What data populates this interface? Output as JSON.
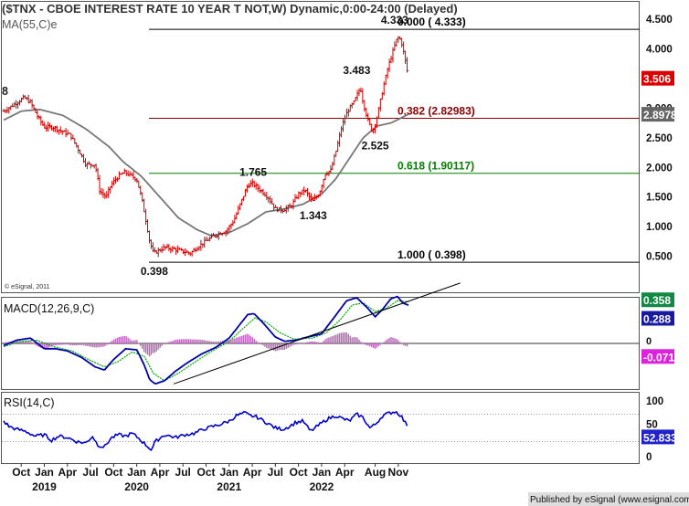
{
  "header": {
    "main_title": "($TNX - CBOE INTEREST RATE 10 YEAR T NOT,W) Dynamic,0:00-24:00 (Delayed)",
    "ma_label": "MA(55,C)e",
    "watermark": "© eSignal, 2011",
    "macd_title": "MACD(12,26,9,C)",
    "rsi_title": "RSI(14,C)",
    "footer": "Published by eSignal (www.esignal.com)",
    "left_edge_label": "8"
  },
  "colors": {
    "price_bars": "#cc0000",
    "ma_line": "#777777",
    "fib_000": "#000000",
    "fib_382": "#8b0000",
    "fib_618": "#008000",
    "fib_100": "#000000",
    "macd_line": "#0000aa",
    "signal_line": "#00aa00",
    "histogram": "#bb66bb",
    "rsi_line": "#0000cc",
    "current_price_box": "#dd0000",
    "ma_value_box": "#666666",
    "macd_value_box": "#118844",
    "hist_value_box": "#dd22dd",
    "rsi_value_box": "#2222cc"
  },
  "chart_data": [
    {
      "type": "candlestick",
      "name": "price",
      "ylim": [
        0.2,
        4.55
      ],
      "y_ticks": [
        0.5,
        1.0,
        1.5,
        2.0,
        2.5,
        3.0,
        3.5,
        4.0,
        4.5
      ],
      "y_tick_labels": [
        "0.500",
        "1.000",
        "1.500",
        "2.000",
        "2.500",
        "3.000",
        "3.500",
        "4.000",
        "4.500"
      ],
      "x_ticks": [
        {
          "t": 2018.75,
          "label": "Oct"
        },
        {
          "t": 2019.0,
          "label": "Jan"
        },
        {
          "t": 2019.25,
          "label": "Apr"
        },
        {
          "t": 2019.5,
          "label": "Jul"
        },
        {
          "t": 2019.75,
          "label": "Oct"
        },
        {
          "t": 2020.0,
          "label": "Jan"
        },
        {
          "t": 2020.25,
          "label": "Apr"
        },
        {
          "t": 2020.5,
          "label": "Jul"
        },
        {
          "t": 2020.75,
          "label": "Oct"
        },
        {
          "t": 2021.0,
          "label": "Jan"
        },
        {
          "t": 2021.25,
          "label": "Apr"
        },
        {
          "t": 2021.5,
          "label": "Jul"
        },
        {
          "t": 2021.75,
          "label": "Oct"
        },
        {
          "t": 2022.0,
          "label": "Jan"
        },
        {
          "t": 2022.25,
          "label": "Apr"
        },
        {
          "t": 2022.58,
          "label": "Aug"
        },
        {
          "t": 2022.83,
          "label": "Nov"
        }
      ],
      "year_labels": [
        {
          "t": 2019.0,
          "label": "2019"
        },
        {
          "t": 2020.0,
          "label": "2020"
        },
        {
          "t": 2021.0,
          "label": "2021"
        },
        {
          "t": 2022.0,
          "label": "2022"
        }
      ],
      "close_anchors": [
        [
          2018.56,
          2.95
        ],
        [
          2018.66,
          3.05
        ],
        [
          2018.78,
          3.18
        ],
        [
          2018.85,
          3.1
        ],
        [
          2018.93,
          2.85
        ],
        [
          2019.0,
          2.68
        ],
        [
          2019.1,
          2.68
        ],
        [
          2019.2,
          2.6
        ],
        [
          2019.28,
          2.55
        ],
        [
          2019.37,
          2.3
        ],
        [
          2019.45,
          2.05
        ],
        [
          2019.55,
          2.05
        ],
        [
          2019.6,
          1.6
        ],
        [
          2019.67,
          1.5
        ],
        [
          2019.72,
          1.7
        ],
        [
          2019.8,
          1.85
        ],
        [
          2019.87,
          1.92
        ],
        [
          2019.95,
          1.85
        ],
        [
          2020.0,
          1.8
        ],
        [
          2020.05,
          1.5
        ],
        [
          2020.1,
          1.1
        ],
        [
          2020.14,
          0.75
        ],
        [
          2020.18,
          0.55
        ],
        [
          2020.3,
          0.65
        ],
        [
          2020.4,
          0.62
        ],
        [
          2020.5,
          0.58
        ],
        [
          2020.58,
          0.55
        ],
        [
          2020.67,
          0.67
        ],
        [
          2020.77,
          0.78
        ],
        [
          2020.88,
          0.88
        ],
        [
          2020.97,
          0.93
        ],
        [
          2021.05,
          1.1
        ],
        [
          2021.12,
          1.38
        ],
        [
          2021.2,
          1.7
        ],
        [
          2021.25,
          1.73
        ],
        [
          2021.35,
          1.6
        ],
        [
          2021.42,
          1.5
        ],
        [
          2021.5,
          1.3
        ],
        [
          2021.58,
          1.28
        ],
        [
          2021.67,
          1.35
        ],
        [
          2021.75,
          1.55
        ],
        [
          2021.82,
          1.62
        ],
        [
          2021.9,
          1.42
        ],
        [
          2021.97,
          1.55
        ],
        [
          2022.04,
          1.9
        ],
        [
          2022.1,
          1.95
        ],
        [
          2022.16,
          2.3
        ],
        [
          2022.22,
          2.7
        ],
        [
          2022.28,
          2.95
        ],
        [
          2022.35,
          3.1
        ],
        [
          2022.42,
          3.35
        ],
        [
          2022.45,
          3.1
        ],
        [
          2022.5,
          2.8
        ],
        [
          2022.55,
          2.6
        ],
        [
          2022.6,
          2.85
        ],
        [
          2022.66,
          3.3
        ],
        [
          2022.72,
          3.7
        ],
        [
          2022.78,
          4.0
        ],
        [
          2022.82,
          4.2
        ],
        [
          2022.86,
          4.15
        ],
        [
          2022.9,
          3.85
        ],
        [
          2022.94,
          3.506
        ]
      ],
      "ma_anchors": [
        [
          2018.56,
          2.8
        ],
        [
          2018.75,
          2.95
        ],
        [
          2018.95,
          2.98
        ],
        [
          2019.2,
          2.88
        ],
        [
          2019.45,
          2.65
        ],
        [
          2019.7,
          2.35
        ],
        [
          2019.85,
          2.1
        ],
        [
          2020.05,
          1.85
        ],
        [
          2020.25,
          1.5
        ],
        [
          2020.45,
          1.15
        ],
        [
          2020.65,
          0.95
        ],
        [
          2020.8,
          0.85
        ],
        [
          2021.0,
          0.9
        ],
        [
          2021.2,
          1.05
        ],
        [
          2021.4,
          1.25
        ],
        [
          2021.6,
          1.3
        ],
        [
          2021.8,
          1.38
        ],
        [
          2022.0,
          1.55
        ],
        [
          2022.15,
          1.8
        ],
        [
          2022.3,
          2.15
        ],
        [
          2022.45,
          2.5
        ],
        [
          2022.6,
          2.7
        ],
        [
          2022.75,
          2.75
        ],
        [
          2022.94,
          2.8978
        ]
      ],
      "fib_levels": [
        {
          "label": "0.000 ( 4.333)",
          "value": 4.333
        },
        {
          "label": "0.382 (2.82983)",
          "value": 2.82983
        },
        {
          "label": "0.618 (1.90117)",
          "value": 1.90117
        },
        {
          "label": "1.000 ( 0.398)",
          "value": 0.398
        }
      ],
      "annotations": [
        {
          "text": "4.333",
          "t": 2022.78,
          "y": 4.333
        },
        {
          "text": "3.483",
          "t": 2022.37,
          "y": 3.483
        },
        {
          "text": "2.525",
          "t": 2022.57,
          "y": 2.525
        },
        {
          "text": "1.765",
          "t": 2021.25,
          "y": 1.765
        },
        {
          "text": "1.343",
          "t": 2021.9,
          "y": 1.343
        },
        {
          "text": "0.398",
          "t": 2020.18,
          "y": 0.398
        }
      ],
      "price_tags": {
        "current_price": "3.506",
        "ma_value": "2.8978"
      }
    },
    {
      "type": "line",
      "name": "MACD(12,26,9,C)",
      "ylim": [
        -0.42,
        0.42
      ],
      "y_ticks": [
        0.0
      ],
      "y_tick_labels": [
        "0"
      ],
      "macd_anchors": [
        [
          2018.56,
          -0.02
        ],
        [
          2018.7,
          0.03
        ],
        [
          2018.85,
          0.05
        ],
        [
          2019.0,
          -0.05
        ],
        [
          2019.12,
          -0.05
        ],
        [
          2019.25,
          -0.07
        ],
        [
          2019.4,
          -0.13
        ],
        [
          2019.55,
          -0.22
        ],
        [
          2019.65,
          -0.25
        ],
        [
          2019.75,
          -0.15
        ],
        [
          2019.88,
          -0.05
        ],
        [
          2020.0,
          -0.06
        ],
        [
          2020.08,
          -0.2
        ],
        [
          2020.14,
          -0.34
        ],
        [
          2020.2,
          -0.38
        ],
        [
          2020.3,
          -0.35
        ],
        [
          2020.42,
          -0.26
        ],
        [
          2020.55,
          -0.18
        ],
        [
          2020.7,
          -0.1
        ],
        [
          2020.85,
          -0.04
        ],
        [
          2021.0,
          0.05
        ],
        [
          2021.1,
          0.16
        ],
        [
          2021.2,
          0.27
        ],
        [
          2021.27,
          0.28
        ],
        [
          2021.38,
          0.18
        ],
        [
          2021.5,
          0.06
        ],
        [
          2021.6,
          0.02
        ],
        [
          2021.72,
          0.03
        ],
        [
          2021.85,
          0.06
        ],
        [
          2022.0,
          0.09
        ],
        [
          2022.15,
          0.26
        ],
        [
          2022.27,
          0.4
        ],
        [
          2022.38,
          0.43
        ],
        [
          2022.5,
          0.33
        ],
        [
          2022.58,
          0.25
        ],
        [
          2022.66,
          0.32
        ],
        [
          2022.75,
          0.42
        ],
        [
          2022.82,
          0.44
        ],
        [
          2022.88,
          0.38
        ],
        [
          2022.94,
          0.358
        ]
      ],
      "signal_anchors": [
        [
          2018.56,
          -0.03
        ],
        [
          2018.75,
          0.02
        ],
        [
          2018.92,
          0.03
        ],
        [
          2019.1,
          -0.03
        ],
        [
          2019.3,
          -0.07
        ],
        [
          2019.5,
          -0.16
        ],
        [
          2019.65,
          -0.22
        ],
        [
          2019.8,
          -0.17
        ],
        [
          2019.95,
          -0.08
        ],
        [
          2020.08,
          -0.12
        ],
        [
          2020.18,
          -0.28
        ],
        [
          2020.3,
          -0.35
        ],
        [
          2020.45,
          -0.28
        ],
        [
          2020.62,
          -0.18
        ],
        [
          2020.8,
          -0.08
        ],
        [
          2021.0,
          0.02
        ],
        [
          2021.15,
          0.14
        ],
        [
          2021.28,
          0.24
        ],
        [
          2021.4,
          0.2
        ],
        [
          2021.55,
          0.1
        ],
        [
          2021.7,
          0.04
        ],
        [
          2021.9,
          0.05
        ],
        [
          2022.05,
          0.1
        ],
        [
          2022.2,
          0.22
        ],
        [
          2022.33,
          0.36
        ],
        [
          2022.45,
          0.38
        ],
        [
          2022.58,
          0.3
        ],
        [
          2022.7,
          0.33
        ],
        [
          2022.82,
          0.4
        ],
        [
          2022.94,
          0.39
        ]
      ],
      "trendline": [
        [
          2020.4,
          -0.38
        ],
        [
          2023.5,
          0.52
        ]
      ],
      "value_tags": {
        "macd": "0.358",
        "signal_partial": "0.288",
        "histogram": "-0.071"
      }
    },
    {
      "type": "line",
      "name": "RSI(14,C)",
      "ylim": [
        0,
        100
      ],
      "y_ticks": [
        100,
        50,
        0
      ],
      "y_tick_labels": [
        "100",
        "50",
        "0"
      ],
      "overbought": 70,
      "oversold": 30,
      "rsi_anchors": [
        [
          2018.56,
          60
        ],
        [
          2018.62,
          52
        ],
        [
          2018.7,
          48
        ],
        [
          2018.8,
          45
        ],
        [
          2018.9,
          38
        ],
        [
          2019.0,
          40
        ],
        [
          2019.08,
          32
        ],
        [
          2019.15,
          38
        ],
        [
          2019.25,
          36
        ],
        [
          2019.35,
          30
        ],
        [
          2019.45,
          28
        ],
        [
          2019.52,
          38
        ],
        [
          2019.58,
          25
        ],
        [
          2019.65,
          22
        ],
        [
          2019.72,
          35
        ],
        [
          2019.8,
          40
        ],
        [
          2019.88,
          38
        ],
        [
          2019.95,
          42
        ],
        [
          2020.02,
          35
        ],
        [
          2020.1,
          25
        ],
        [
          2020.16,
          18
        ],
        [
          2020.2,
          30
        ],
        [
          2020.3,
          40
        ],
        [
          2020.42,
          36
        ],
        [
          2020.52,
          40
        ],
        [
          2020.62,
          42
        ],
        [
          2020.72,
          48
        ],
        [
          2020.82,
          52
        ],
        [
          2020.9,
          55
        ],
        [
          2021.0,
          60
        ],
        [
          2021.08,
          68
        ],
        [
          2021.17,
          72
        ],
        [
          2021.22,
          68
        ],
        [
          2021.3,
          66
        ],
        [
          2021.4,
          58
        ],
        [
          2021.5,
          50
        ],
        [
          2021.58,
          48
        ],
        [
          2021.65,
          52
        ],
        [
          2021.72,
          58
        ],
        [
          2021.8,
          60
        ],
        [
          2021.88,
          45
        ],
        [
          2021.95,
          52
        ],
        [
          2022.05,
          62
        ],
        [
          2022.15,
          68
        ],
        [
          2022.22,
          64
        ],
        [
          2022.3,
          60
        ],
        [
          2022.38,
          70
        ],
        [
          2022.45,
          65
        ],
        [
          2022.52,
          50
        ],
        [
          2022.58,
          55
        ],
        [
          2022.66,
          68
        ],
        [
          2022.74,
          72
        ],
        [
          2022.8,
          74
        ],
        [
          2022.86,
          68
        ],
        [
          2022.9,
          58
        ],
        [
          2022.94,
          52.833
        ]
      ],
      "value_tags": {
        "rsi": "52.833"
      }
    }
  ]
}
